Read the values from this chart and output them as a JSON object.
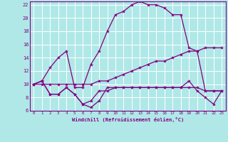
{
  "xlabel": "Windchill (Refroidissement éolien,°C)",
  "bg_color": "#b0e8e8",
  "grid_color": "#ffffff",
  "line_color": "#800080",
  "xlim": [
    -0.5,
    23.5
  ],
  "ylim": [
    6,
    22.5
  ],
  "xticks": [
    0,
    1,
    2,
    3,
    4,
    5,
    6,
    7,
    8,
    9,
    10,
    11,
    12,
    13,
    14,
    15,
    16,
    17,
    18,
    19,
    20,
    21,
    22,
    23
  ],
  "yticks": [
    6,
    8,
    10,
    12,
    14,
    16,
    18,
    20,
    22
  ],
  "lines": [
    {
      "x": [
        0,
        1,
        2,
        3,
        4,
        5,
        6,
        7,
        8,
        9,
        10,
        11,
        12,
        13,
        14,
        15,
        16,
        17,
        18,
        19,
        20,
        21,
        22,
        23
      ],
      "y": [
        10,
        10.5,
        8.5,
        8.5,
        9.5,
        8.5,
        7.0,
        7.5,
        9.0,
        9.0,
        9.5,
        9.5,
        9.5,
        9.5,
        9.5,
        9.5,
        9.5,
        9.5,
        9.5,
        9.5,
        9.5,
        9.0,
        9.0,
        9.0
      ]
    },
    {
      "x": [
        0,
        1,
        2,
        3,
        4,
        5,
        6,
        7,
        8,
        9,
        10,
        11,
        12,
        13,
        14,
        15,
        16,
        17,
        18,
        19,
        20,
        21,
        22,
        23
      ],
      "y": [
        10,
        10.5,
        8.5,
        8.5,
        9.5,
        8.5,
        7.0,
        6.5,
        7.5,
        9.5,
        9.5,
        9.5,
        9.5,
        9.5,
        9.5,
        9.5,
        9.5,
        9.5,
        9.5,
        10.5,
        9.0,
        8.0,
        7.0,
        9.0
      ]
    },
    {
      "x": [
        0,
        1,
        2,
        3,
        4,
        5,
        6,
        7,
        8,
        9,
        10,
        11,
        12,
        13,
        14,
        15,
        16,
        17,
        18,
        19,
        20,
        21,
        22,
        23
      ],
      "y": [
        10,
        10.5,
        12.5,
        14.0,
        15.0,
        9.5,
        9.5,
        13.0,
        15.0,
        18.0,
        20.5,
        21.0,
        22.0,
        22.5,
        22.0,
        22.0,
        21.5,
        20.5,
        20.5,
        15.5,
        15.0,
        9.0,
        9.0,
        9.0
      ]
    },
    {
      "x": [
        0,
        1,
        2,
        3,
        4,
        5,
        6,
        7,
        8,
        9,
        10,
        11,
        12,
        13,
        14,
        15,
        16,
        17,
        18,
        19,
        20,
        21,
        22,
        23
      ],
      "y": [
        10,
        10.0,
        10.0,
        10.0,
        10.0,
        10.0,
        10.0,
        10.0,
        10.5,
        10.5,
        11.0,
        11.5,
        12.0,
        12.5,
        13.0,
        13.5,
        13.5,
        14.0,
        14.5,
        15.0,
        15.0,
        15.5,
        15.5,
        15.5
      ]
    }
  ]
}
